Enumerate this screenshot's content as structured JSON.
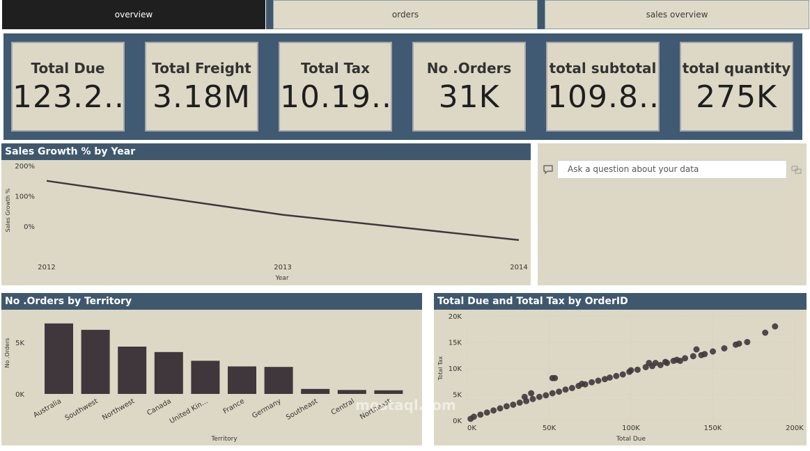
{
  "tabs": [
    {
      "label": "overview",
      "active": true
    },
    {
      "label": "orders",
      "active": false
    },
    {
      "label": "sales overview",
      "active": false
    }
  ],
  "kpis": [
    {
      "title": "Total Due",
      "value": "123.2..."
    },
    {
      "title": "Total Freight",
      "value": "3.18M"
    },
    {
      "title": "Total Tax",
      "value": "10.19.."
    },
    {
      "title": "No .Orders",
      "value": "31K"
    },
    {
      "title": "total subtotal",
      "value": "109.8..."
    },
    {
      "title": "total quantity",
      "value": "275K"
    }
  ],
  "qa": {
    "placeholder": "Ask a question about your data"
  },
  "watermark": {
    "text": "mostaql.com"
  },
  "colors": {
    "header": "#3f586e",
    "panel": "#ddd8c5",
    "mark": "#3f373c"
  },
  "chart_data": [
    {
      "type": "line",
      "title": "Sales Growth % by Year",
      "xlabel": "Year",
      "ylabel": "Sales Growth %",
      "x": [
        "2012",
        "2013",
        "2014"
      ],
      "series": [
        {
          "values": [
            150,
            38,
            -45
          ]
        }
      ],
      "yticks": [
        "200%",
        "100%",
        "0%"
      ],
      "ylim": [
        -50,
        200
      ],
      "grid": false
    },
    {
      "type": "bar",
      "title": "No .Orders by Territory",
      "xlabel": "Territory",
      "ylabel": "No .Orders",
      "categories": [
        "Australia",
        "Southwest",
        "Northwest",
        "Canada",
        "United Kin...",
        "France",
        "Germany",
        "Southeast",
        "Central",
        "Northeast"
      ],
      "values": [
        6843,
        6224,
        4594,
        4067,
        3219,
        2672,
        2623,
        486,
        385,
        352
      ],
      "yticks": [
        "5K",
        "0K"
      ],
      "ylim": [
        0,
        7500
      ]
    },
    {
      "type": "scatter",
      "title": "Total Due and Total Tax by OrderID",
      "xlabel": "Total Due",
      "ylabel": "Total Tax",
      "xticks": [
        "0K",
        "50K",
        "100K",
        "150K",
        "200K"
      ],
      "yticks": [
        "20K",
        "15K",
        "10K",
        "5K",
        "0K"
      ],
      "xlim": [
        0,
        200000
      ],
      "ylim": [
        0,
        20000
      ],
      "points": [
        [
          188000,
          18000
        ],
        [
          182000,
          16800
        ],
        [
          171000,
          15000
        ],
        [
          166000,
          14700
        ],
        [
          164000,
          14500
        ],
        [
          157000,
          13800
        ],
        [
          150000,
          13200
        ],
        [
          143000,
          12500
        ],
        [
          140000,
          13600
        ],
        [
          138000,
          12300
        ],
        [
          133000,
          11900
        ],
        [
          128000,
          11600
        ],
        [
          126000,
          11400
        ],
        [
          122000,
          11000
        ],
        [
          118000,
          10600
        ],
        [
          113000,
          10400
        ],
        [
          111000,
          11000
        ],
        [
          109000,
          10200
        ],
        [
          104000,
          9700
        ],
        [
          99000,
          9300
        ],
        [
          95000,
          8800
        ],
        [
          91000,
          8500
        ],
        [
          87000,
          8200
        ],
        [
          84000,
          7900
        ],
        [
          80000,
          7600
        ],
        [
          76000,
          7300
        ],
        [
          72000,
          6900
        ],
        [
          68000,
          6600
        ],
        [
          64000,
          6200
        ],
        [
          60000,
          5900
        ],
        [
          56000,
          5500
        ],
        [
          52000,
          5200
        ],
        [
          48000,
          4800
        ],
        [
          44000,
          4500
        ],
        [
          40000,
          4100
        ],
        [
          36000,
          3700
        ],
        [
          32000,
          3400
        ],
        [
          28000,
          3000
        ],
        [
          24000,
          2700
        ],
        [
          20000,
          2300
        ],
        [
          16000,
          1900
        ],
        [
          12000,
          1500
        ],
        [
          8000,
          1100
        ],
        [
          4000,
          700
        ],
        [
          2000,
          300
        ],
        [
          52000,
          8100
        ],
        [
          53500,
          8100
        ],
        [
          39000,
          5200
        ],
        [
          35000,
          4500
        ],
        [
          100000,
          9600
        ],
        [
          115000,
          11000
        ],
        [
          121000,
          11200
        ],
        [
          145000,
          12700
        ],
        [
          130000,
          11400
        ],
        [
          70000,
          7000
        ]
      ]
    }
  ]
}
